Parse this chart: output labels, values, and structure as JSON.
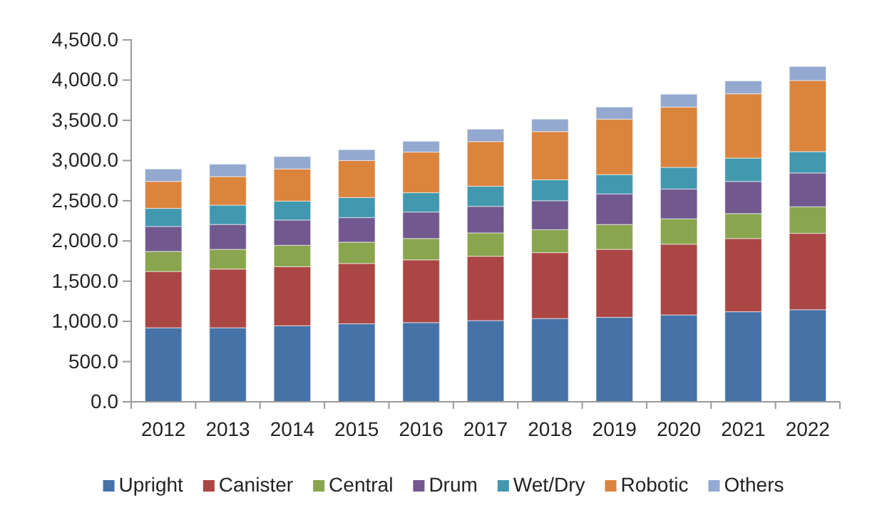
{
  "chart_data": {
    "type": "bar",
    "stacked": true,
    "legend": "bottom",
    "grid": false,
    "categories": [
      "2012",
      "2013",
      "2014",
      "2015",
      "2016",
      "2017",
      "2018",
      "2019",
      "2020",
      "2021",
      "2022"
    ],
    "ylim": [
      0,
      4500
    ],
    "yticks": [
      {
        "value": 0,
        "label": "0.0"
      },
      {
        "value": 500,
        "label": "500.0"
      },
      {
        "value": 1000,
        "label": "1,000.0"
      },
      {
        "value": 1500,
        "label": "1,500.0"
      },
      {
        "value": 2000,
        "label": "2,000.0"
      },
      {
        "value": 2500,
        "label": "2,500.0"
      },
      {
        "value": 3000,
        "label": "3,000.0"
      },
      {
        "value": 3500,
        "label": "3,500.0"
      },
      {
        "value": 4000,
        "label": "4,000.0"
      },
      {
        "value": 4500,
        "label": "4,500.0"
      }
    ],
    "series": [
      {
        "name": "Upright",
        "color": "#4572a7",
        "values": [
          920,
          920,
          945,
          970,
          985,
          1010,
          1035,
          1050,
          1080,
          1120,
          1145
        ]
      },
      {
        "name": "Canister",
        "color": "#aa4643",
        "values": [
          700,
          730,
          735,
          750,
          780,
          800,
          820,
          845,
          880,
          910,
          950
        ]
      },
      {
        "name": "Central",
        "color": "#89a54e",
        "values": [
          250,
          245,
          265,
          265,
          265,
          290,
          285,
          310,
          315,
          310,
          330
        ]
      },
      {
        "name": "Drum",
        "color": "#71588f",
        "values": [
          310,
          310,
          315,
          305,
          330,
          330,
          360,
          380,
          370,
          400,
          420
        ]
      },
      {
        "name": "Wet/Dry",
        "color": "#4198af",
        "values": [
          225,
          240,
          235,
          250,
          240,
          250,
          260,
          240,
          270,
          290,
          265
        ]
      },
      {
        "name": "Robotic",
        "color": "#db843d",
        "values": [
          335,
          355,
          400,
          460,
          505,
          555,
          600,
          690,
          750,
          800,
          885
        ]
      },
      {
        "name": "Others",
        "color": "#93a9cf",
        "values": [
          155,
          155,
          155,
          135,
          135,
          155,
          155,
          150,
          160,
          160,
          175
        ]
      }
    ]
  }
}
